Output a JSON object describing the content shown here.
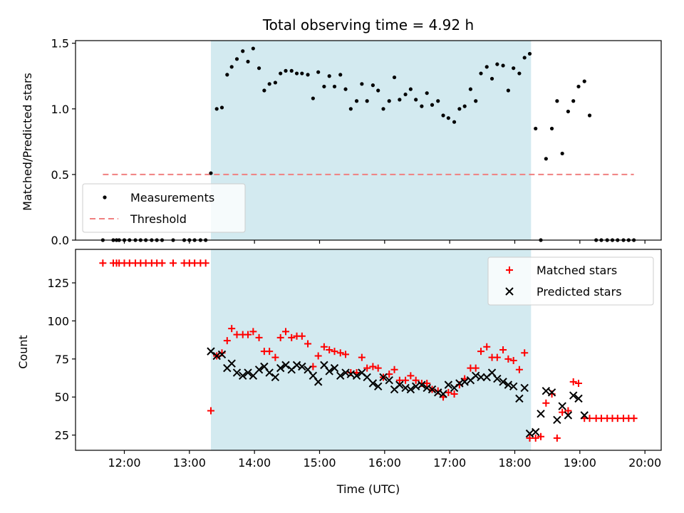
{
  "chart_data": [
    {
      "type": "scatter",
      "title": "Total observing time = 4.92 h",
      "xlabel": "",
      "ylabel": "Matched/Predicted stars",
      "ylim": [
        0,
        1.52
      ],
      "xlim": [
        11.25,
        20.25
      ],
      "yticks": [
        "0.0",
        "0.5",
        "1.0",
        "1.5"
      ],
      "observing_window": [
        13.33,
        18.25
      ],
      "observing_window_color": "#d3eaf0",
      "threshold": {
        "name": "Threshold",
        "y": 0.5,
        "x_range": [
          11.67,
          19.83
        ],
        "color": "#f08080"
      },
      "legend": {
        "position": "lower-left",
        "entries": [
          "Measurements",
          "Threshold"
        ]
      },
      "series": [
        {
          "name": "Measurements",
          "color": "#000000",
          "marker": "dot",
          "points": [
            [
              11.67,
              0
            ],
            [
              11.83,
              0
            ],
            [
              11.88,
              0
            ],
            [
              11.92,
              0
            ],
            [
              12.0,
              0
            ],
            [
              12.08,
              0
            ],
            [
              12.17,
              0
            ],
            [
              12.25,
              0
            ],
            [
              12.33,
              0
            ],
            [
              12.42,
              0
            ],
            [
              12.5,
              0
            ],
            [
              12.58,
              0
            ],
            [
              12.75,
              0
            ],
            [
              12.92,
              0
            ],
            [
              13.0,
              0
            ],
            [
              13.08,
              0
            ],
            [
              13.17,
              0
            ],
            [
              13.25,
              0
            ],
            [
              13.33,
              0.51
            ],
            [
              13.42,
              1.0
            ],
            [
              13.5,
              1.01
            ],
            [
              13.58,
              1.26
            ],
            [
              13.65,
              1.32
            ],
            [
              13.73,
              1.38
            ],
            [
              13.82,
              1.44
            ],
            [
              13.9,
              1.36
            ],
            [
              13.98,
              1.46
            ],
            [
              14.07,
              1.31
            ],
            [
              14.15,
              1.14
            ],
            [
              14.23,
              1.19
            ],
            [
              14.32,
              1.2
            ],
            [
              14.4,
              1.27
            ],
            [
              14.48,
              1.29
            ],
            [
              14.57,
              1.29
            ],
            [
              14.65,
              1.27
            ],
            [
              14.73,
              1.27
            ],
            [
              14.82,
              1.26
            ],
            [
              14.9,
              1.08
            ],
            [
              14.98,
              1.28
            ],
            [
              15.07,
              1.17
            ],
            [
              15.15,
              1.25
            ],
            [
              15.23,
              1.17
            ],
            [
              15.32,
              1.26
            ],
            [
              15.4,
              1.15
            ],
            [
              15.48,
              1.0
            ],
            [
              15.57,
              1.06
            ],
            [
              15.65,
              1.19
            ],
            [
              15.73,
              1.06
            ],
            [
              15.82,
              1.18
            ],
            [
              15.9,
              1.14
            ],
            [
              15.98,
              1.0
            ],
            [
              16.07,
              1.06
            ],
            [
              16.15,
              1.24
            ],
            [
              16.23,
              1.07
            ],
            [
              16.32,
              1.11
            ],
            [
              16.4,
              1.15
            ],
            [
              16.48,
              1.07
            ],
            [
              16.57,
              1.02
            ],
            [
              16.65,
              1.12
            ],
            [
              16.73,
              1.03
            ],
            [
              16.82,
              1.06
            ],
            [
              16.9,
              0.95
            ],
            [
              16.98,
              0.93
            ],
            [
              17.07,
              0.9
            ],
            [
              17.15,
              1.0
            ],
            [
              17.23,
              1.02
            ],
            [
              17.32,
              1.15
            ],
            [
              17.4,
              1.06
            ],
            [
              17.48,
              1.27
            ],
            [
              17.57,
              1.32
            ],
            [
              17.65,
              1.23
            ],
            [
              17.73,
              1.34
            ],
            [
              17.82,
              1.33
            ],
            [
              17.9,
              1.14
            ],
            [
              17.98,
              1.31
            ],
            [
              18.07,
              1.27
            ],
            [
              18.15,
              1.39
            ],
            [
              18.23,
              1.42
            ],
            [
              18.32,
              0.85
            ],
            [
              18.4,
              0
            ],
            [
              18.48,
              0.62
            ],
            [
              18.57,
              0.85
            ],
            [
              18.65,
              1.06
            ],
            [
              18.73,
              0.66
            ],
            [
              18.82,
              0.98
            ],
            [
              18.9,
              1.06
            ],
            [
              18.98,
              1.17
            ],
            [
              19.07,
              1.21
            ],
            [
              19.15,
              0.95
            ],
            [
              19.25,
              0
            ],
            [
              19.33,
              0
            ],
            [
              19.42,
              0
            ],
            [
              19.5,
              0
            ],
            [
              19.58,
              0
            ],
            [
              19.67,
              0
            ],
            [
              19.75,
              0
            ],
            [
              19.83,
              0
            ]
          ]
        }
      ]
    },
    {
      "type": "scatter",
      "title": "",
      "xlabel": "Time (UTC)",
      "ylabel": "Count",
      "ylim": [
        15,
        147
      ],
      "xlim": [
        11.25,
        20.25
      ],
      "yticks": [
        "25",
        "50",
        "75",
        "100",
        "125"
      ],
      "xticks": [
        "12:00",
        "13:00",
        "14:00",
        "15:00",
        "16:00",
        "17:00",
        "18:00",
        "19:00",
        "20:00"
      ],
      "observing_window": [
        13.33,
        18.25
      ],
      "legend": {
        "position": "top-right",
        "entries": [
          "Matched stars",
          "Predicted stars"
        ]
      },
      "series": [
        {
          "name": "Matched stars",
          "color": "#ff0000",
          "marker": "plus",
          "points": [
            [
              11.67,
              138
            ],
            [
              11.83,
              138
            ],
            [
              11.88,
              138
            ],
            [
              11.92,
              138
            ],
            [
              12.0,
              138
            ],
            [
              12.08,
              138
            ],
            [
              12.17,
              138
            ],
            [
              12.25,
              138
            ],
            [
              12.33,
              138
            ],
            [
              12.42,
              138
            ],
            [
              12.5,
              138
            ],
            [
              12.58,
              138
            ],
            [
              12.75,
              138
            ],
            [
              12.92,
              138
            ],
            [
              13.0,
              138
            ],
            [
              13.08,
              138
            ],
            [
              13.17,
              138
            ],
            [
              13.25,
              138
            ],
            [
              13.33,
              41
            ],
            [
              13.42,
              77
            ],
            [
              13.5,
              79
            ],
            [
              13.58,
              87
            ],
            [
              13.65,
              95
            ],
            [
              13.73,
              91
            ],
            [
              13.82,
              91
            ],
            [
              13.9,
              91
            ],
            [
              13.98,
              93
            ],
            [
              14.07,
              89
            ],
            [
              14.15,
              80
            ],
            [
              14.23,
              80
            ],
            [
              14.32,
              76
            ],
            [
              14.4,
              89
            ],
            [
              14.48,
              93
            ],
            [
              14.57,
              89
            ],
            [
              14.65,
              90
            ],
            [
              14.73,
              90
            ],
            [
              14.82,
              85
            ],
            [
              14.9,
              70
            ],
            [
              14.98,
              77
            ],
            [
              15.07,
              83
            ],
            [
              15.15,
              81
            ],
            [
              15.23,
              80
            ],
            [
              15.32,
              79
            ],
            [
              15.4,
              78
            ],
            [
              15.48,
              66
            ],
            [
              15.57,
              66
            ],
            [
              15.65,
              76
            ],
            [
              15.73,
              69
            ],
            [
              15.82,
              70
            ],
            [
              15.9,
              69
            ],
            [
              15.98,
              63
            ],
            [
              16.07,
              65
            ],
            [
              16.15,
              68
            ],
            [
              16.23,
              61
            ],
            [
              16.32,
              61
            ],
            [
              16.4,
              64
            ],
            [
              16.48,
              61
            ],
            [
              16.57,
              59
            ],
            [
              16.65,
              59
            ],
            [
              16.73,
              55
            ],
            [
              16.82,
              54
            ],
            [
              16.9,
              50
            ],
            [
              16.98,
              53
            ],
            [
              17.07,
              52
            ],
            [
              17.15,
              58
            ],
            [
              17.23,
              62
            ],
            [
              17.32,
              69
            ],
            [
              17.4,
              69
            ],
            [
              17.48,
              80
            ],
            [
              17.57,
              83
            ],
            [
              17.65,
              76
            ],
            [
              17.73,
              76
            ],
            [
              17.82,
              81
            ],
            [
              17.9,
              75
            ],
            [
              17.98,
              74
            ],
            [
              18.07,
              68
            ],
            [
              18.15,
              79
            ],
            [
              18.23,
              23
            ],
            [
              18.32,
              23
            ],
            [
              18.4,
              24
            ],
            [
              18.48,
              46
            ],
            [
              18.57,
              52
            ],
            [
              18.65,
              23
            ],
            [
              18.73,
              40
            ],
            [
              18.82,
              41
            ],
            [
              18.9,
              60
            ],
            [
              18.98,
              59
            ],
            [
              19.07,
              36
            ],
            [
              19.15,
              36
            ],
            [
              19.25,
              36
            ],
            [
              19.33,
              36
            ],
            [
              19.42,
              36
            ],
            [
              19.5,
              36
            ],
            [
              19.58,
              36
            ],
            [
              19.67,
              36
            ],
            [
              19.75,
              36
            ],
            [
              19.83,
              36
            ]
          ]
        },
        {
          "name": "Predicted stars",
          "color": "#000000",
          "marker": "x",
          "points": [
            [
              13.33,
              80
            ],
            [
              13.42,
              77
            ],
            [
              13.5,
              78
            ],
            [
              13.58,
              69
            ],
            [
              13.65,
              72
            ],
            [
              13.73,
              66
            ],
            [
              13.82,
              64
            ],
            [
              13.9,
              66
            ],
            [
              13.98,
              64
            ],
            [
              14.07,
              68
            ],
            [
              14.15,
              70
            ],
            [
              14.23,
              66
            ],
            [
              14.32,
              63
            ],
            [
              14.4,
              69
            ],
            [
              14.48,
              71
            ],
            [
              14.57,
              68
            ],
            [
              14.65,
              71
            ],
            [
              14.73,
              70
            ],
            [
              14.82,
              68
            ],
            [
              14.9,
              64
            ],
            [
              14.98,
              60
            ],
            [
              15.07,
              71
            ],
            [
              15.15,
              67
            ],
            [
              15.23,
              69
            ],
            [
              15.32,
              64
            ],
            [
              15.4,
              66
            ],
            [
              15.48,
              65
            ],
            [
              15.57,
              64
            ],
            [
              15.65,
              66
            ],
            [
              15.73,
              63
            ],
            [
              15.82,
              59
            ],
            [
              15.9,
              57
            ],
            [
              15.98,
              63
            ],
            [
              16.07,
              61
            ],
            [
              16.15,
              55
            ],
            [
              16.23,
              58
            ],
            [
              16.32,
              56
            ],
            [
              16.4,
              55
            ],
            [
              16.48,
              57
            ],
            [
              16.57,
              58
            ],
            [
              16.65,
              56
            ],
            [
              16.73,
              55
            ],
            [
              16.82,
              53
            ],
            [
              16.9,
              52
            ],
            [
              16.98,
              58
            ],
            [
              17.07,
              56
            ],
            [
              17.15,
              59
            ],
            [
              17.23,
              60
            ],
            [
              17.32,
              61
            ],
            [
              17.4,
              64
            ],
            [
              17.48,
              63
            ],
            [
              17.57,
              63
            ],
            [
              17.65,
              66
            ],
            [
              17.73,
              62
            ],
            [
              17.82,
              60
            ],
            [
              17.9,
              58
            ],
            [
              17.98,
              57
            ],
            [
              18.07,
              49
            ],
            [
              18.15,
              56
            ],
            [
              18.23,
              26
            ],
            [
              18.32,
              27
            ],
            [
              18.4,
              39
            ],
            [
              18.48,
              54
            ],
            [
              18.57,
              53
            ],
            [
              18.65,
              35
            ],
            [
              18.73,
              44
            ],
            [
              18.82,
              38
            ],
            [
              18.9,
              51
            ],
            [
              18.98,
              49
            ],
            [
              19.07,
              38
            ]
          ]
        }
      ]
    }
  ]
}
